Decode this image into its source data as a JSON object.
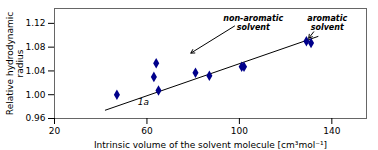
{
  "chart_data": {
    "type": "scatter",
    "x": [
      47,
      63,
      64,
      65,
      81,
      87,
      101,
      102,
      129,
      131
    ],
    "values": [
      1.0,
      1.03,
      1.053,
      1.007,
      1.037,
      1.032,
      1.047,
      1.047,
      1.09,
      1.087
    ],
    "color": "#00008B",
    "marker": "diamond",
    "trend": {
      "x": [
        42,
        134
      ],
      "values": [
        0.974,
        1.098
      ],
      "color": "black"
    },
    "xlabel": "Intrinsic volume of the solvent molecule [cm³mol⁻¹]",
    "ylabel": "Relative hydrodynamic\nradius",
    "xlim": [
      20,
      155
    ],
    "ylim": [
      0.96,
      1.145
    ],
    "xticks": [
      20,
      60,
      100,
      140
    ],
    "yticks": [
      0.96,
      {
        "value": 1.0,
        "label": "1.00"
      },
      1.04,
      1.08,
      1.12
    ],
    "annotations": [
      {
        "text": "1a",
        "x": 56,
        "y": 0.983
      },
      {
        "text": "non-aromatic\nsolvent",
        "x": 106,
        "y": 1.135,
        "arrow_x": 79,
        "arrow_y": 1.07
      },
      {
        "text": "aromatic\nsolvent",
        "x": 138,
        "y": 1.135,
        "arrow_x": 130,
        "arrow_y": 1.095
      }
    ]
  }
}
